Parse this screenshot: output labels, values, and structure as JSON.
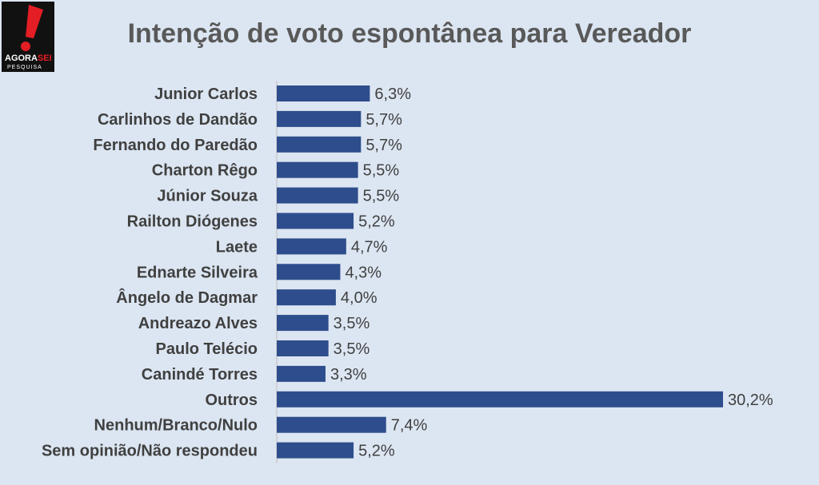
{
  "logo": {
    "text_main": "AGORA",
    "text_accent": "SEI",
    "text_sub": "PESQUISA",
    "colors": {
      "background": "#111111",
      "mark": "#e31e24",
      "text": "#ffffff"
    }
  },
  "colors": {
    "background": "#dce6f2",
    "bar": "#2e4d8c",
    "text": "#404040",
    "title": "#595959"
  },
  "chart_data": {
    "type": "bar",
    "orientation": "horizontal",
    "title": "Intenção de voto espontânea para Vereador",
    "categories": [
      "Junior Carlos",
      "Carlinhos de Dandão",
      "Fernando do Paredão",
      "Charton Rêgo",
      "Júnior Souza",
      "Railton Diógenes",
      "Laete",
      "Ednarte Silveira",
      "Ângelo de Dagmar",
      "Andreazo Alves",
      "Paulo Telécio",
      "Canindé Torres",
      "Outros",
      "Nenhum/Branco/Nulo",
      "Sem opinião/Não respondeu"
    ],
    "values": [
      6.3,
      5.7,
      5.7,
      5.5,
      5.5,
      5.2,
      4.7,
      4.3,
      4.0,
      3.5,
      3.5,
      3.3,
      30.2,
      7.4,
      5.2
    ],
    "data_labels": [
      "6,3%",
      "5,7%",
      "5,7%",
      "5,5%",
      "5,5%",
      "5,2%",
      "4,7%",
      "4,3%",
      "4,0%",
      "3,5%",
      "3,5%",
      "3,3%",
      "30,2%",
      "7,4%",
      "5,2%"
    ],
    "xlim": [
      0,
      30.2
    ],
    "grid": false,
    "legend": "none"
  }
}
